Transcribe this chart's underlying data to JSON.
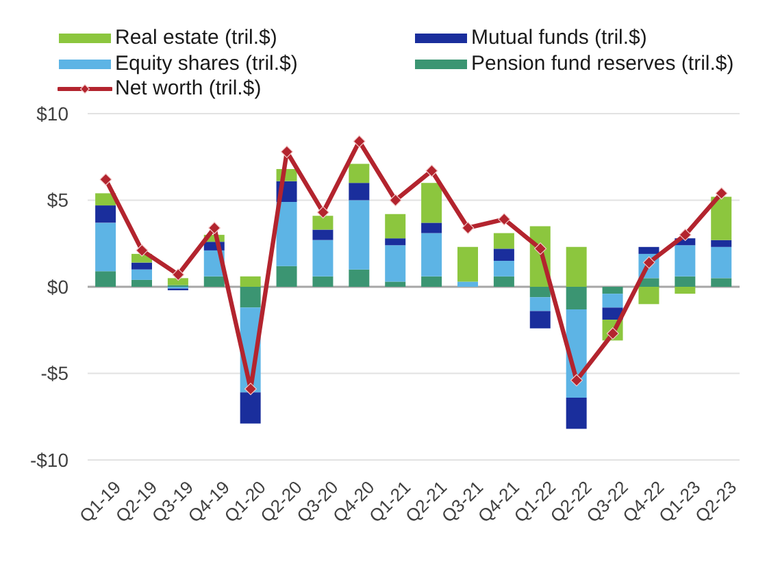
{
  "chart_data": {
    "type": "bar",
    "stacked": true,
    "categories": [
      "Q1-19",
      "Q2-19",
      "Q3-19",
      "Q4-19",
      "Q1-20",
      "Q2-20",
      "Q3-20",
      "Q4-20",
      "Q1-21",
      "Q2-21",
      "Q3-21",
      "Q4-21",
      "Q1-22",
      "Q2-22",
      "Q3-22",
      "Q4-22",
      "Q1-23",
      "Q2-23"
    ],
    "series": [
      {
        "name": "Pension fund reserves (tril.$)",
        "color": "#3b9572",
        "values": [
          0.9,
          0.4,
          0.1,
          0.6,
          -1.2,
          1.2,
          0.6,
          1.0,
          0.3,
          0.6,
          0,
          0.6,
          -0.6,
          -1.3,
          -0.4,
          0.5,
          0.6,
          0.5
        ]
      },
      {
        "name": "Equity shares (tril.$)",
        "color": "#5db4e5",
        "values": [
          2.8,
          0.6,
          -0.1,
          1.5,
          -4.9,
          3.7,
          2.1,
          4.0,
          2.1,
          2.5,
          0.3,
          0.9,
          -0.8,
          -5.1,
          -0.8,
          1.4,
          1.8,
          1.8
        ]
      },
      {
        "name": "Mutual funds (tril.$)",
        "color": "#1a2e9c",
        "values": [
          1.0,
          0.4,
          -0.1,
          0.5,
          -1.8,
          1.2,
          0.6,
          1.0,
          0.4,
          0.6,
          0,
          0.7,
          -1.0,
          -1.8,
          -0.7,
          0.4,
          0.4,
          0.4
        ]
      },
      {
        "name": "Real estate (tril.$)",
        "color": "#8cc63e",
        "values": [
          0.7,
          0.5,
          0.4,
          0.4,
          0.6,
          0.7,
          0.8,
          1.1,
          1.4,
          2.3,
          2.0,
          0.9,
          3.5,
          2.3,
          -1.2,
          -1.0,
          -0.4,
          2.5
        ]
      },
      {
        "name": "Net worth (tril.$)",
        "type": "line",
        "marker": "diamond",
        "color": "#b3242e",
        "values": [
          6.2,
          2.1,
          0.7,
          3.4,
          -5.9,
          7.8,
          4.3,
          8.4,
          5.0,
          6.7,
          3.4,
          3.9,
          2.2,
          -5.4,
          -2.7,
          1.4,
          3.0,
          5.4
        ]
      }
    ],
    "ylim": [
      -10,
      10
    ],
    "yticks": [
      {
        "value": -10,
        "label": "-$10"
      },
      {
        "value": -5,
        "label": "-$5"
      },
      {
        "value": 0,
        "label": "$0"
      },
      {
        "value": 5,
        "label": "$5"
      },
      {
        "value": 10,
        "label": "$10"
      }
    ],
    "grid": "y",
    "legend": "top"
  }
}
